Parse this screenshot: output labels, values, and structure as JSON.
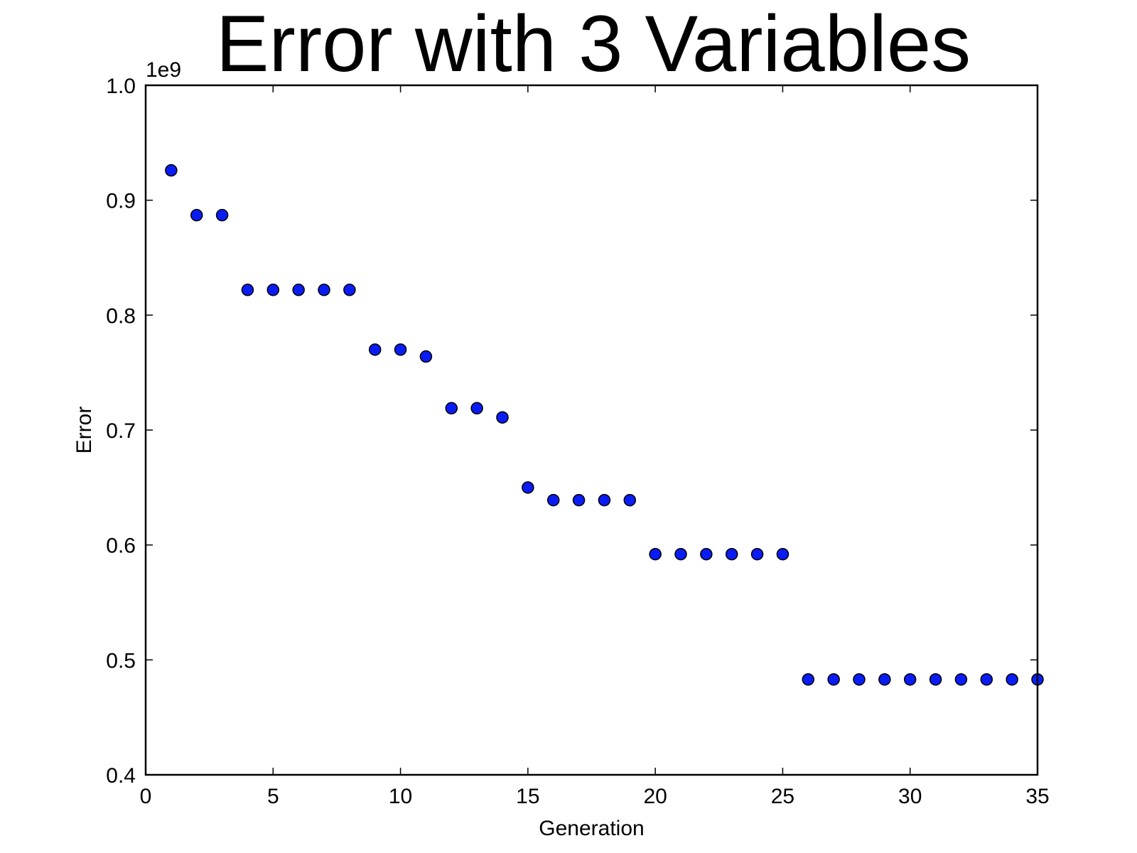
{
  "chart_data": {
    "type": "scatter",
    "title": "Error with 3 Variables",
    "xlabel": "Generation",
    "ylabel": "Error",
    "y_offset_label": "1e9",
    "xlim": [
      0,
      35
    ],
    "ylim": [
      0.4,
      1.0
    ],
    "grid": false,
    "x_ticks": [
      0,
      5,
      10,
      15,
      20,
      25,
      30,
      35
    ],
    "y_ticks": [
      0.4,
      0.5,
      0.6,
      0.7,
      0.8,
      0.9,
      1.0
    ],
    "y_tick_labels": [
      "0.4",
      "0.5",
      "0.6",
      "0.7",
      "0.8",
      "0.9",
      "1.0"
    ],
    "marker_color": "#0a1cf4",
    "marker_edge_color": "#000000",
    "series": [
      {
        "x": [
          1,
          2,
          3,
          4,
          5,
          6,
          7,
          8,
          9,
          10,
          11,
          12,
          13,
          14,
          15,
          16,
          17,
          18,
          19,
          20,
          21,
          22,
          23,
          24,
          25,
          26,
          27,
          28,
          29,
          30,
          31,
          32,
          33,
          34,
          35
        ],
        "y": [
          0.926,
          0.887,
          0.887,
          0.822,
          0.822,
          0.822,
          0.822,
          0.822,
          0.77,
          0.77,
          0.764,
          0.719,
          0.719,
          0.711,
          0.65,
          0.639,
          0.639,
          0.639,
          0.639,
          0.592,
          0.592,
          0.592,
          0.592,
          0.592,
          0.592,
          0.483,
          0.483,
          0.483,
          0.483,
          0.483,
          0.483,
          0.483,
          0.483,
          0.483,
          0.483
        ]
      }
    ]
  }
}
